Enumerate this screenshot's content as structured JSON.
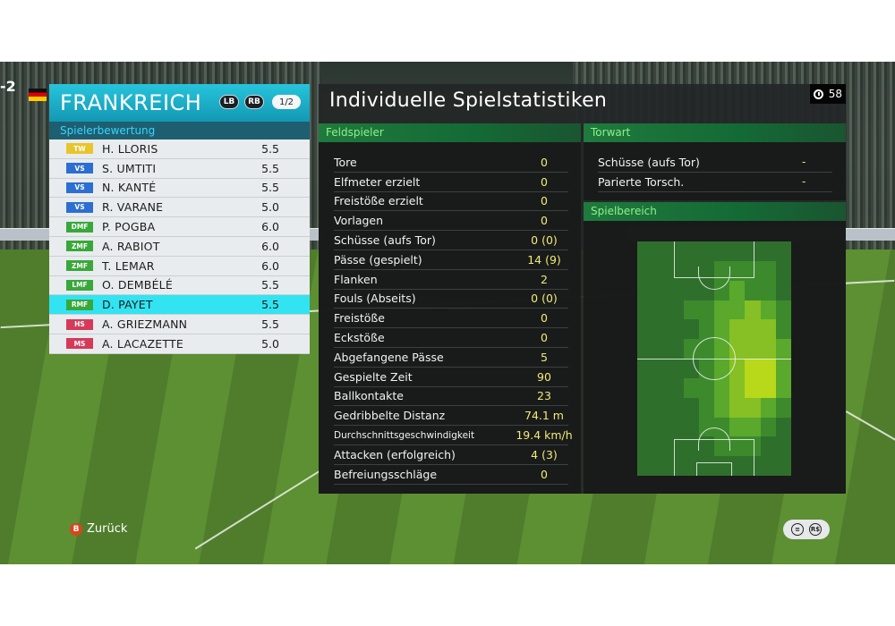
{
  "score": "-2",
  "team": {
    "name": "FRANKREICH",
    "lb": "LB",
    "rb": "RB",
    "page": "1/2",
    "rating_title": "Spielerbewertung"
  },
  "players": [
    {
      "pos": "TW",
      "name": "H. LLORIS",
      "rating": "5.5",
      "pos_color": "#e8c52b"
    },
    {
      "pos": "VS",
      "name": "S. UMTITI",
      "rating": "5.5",
      "pos_color": "#2c6fd1"
    },
    {
      "pos": "VS",
      "name": "N. KANTÉ",
      "rating": "5.5",
      "pos_color": "#2c6fd1"
    },
    {
      "pos": "VS",
      "name": "R. VARANE",
      "rating": "5.0",
      "pos_color": "#2c6fd1"
    },
    {
      "pos": "DMF",
      "name": "P. POGBA",
      "rating": "6.0",
      "pos_color": "#39a83b"
    },
    {
      "pos": "ZMF",
      "name": "A. RABIOT",
      "rating": "6.0",
      "pos_color": "#39a83b"
    },
    {
      "pos": "ZMF",
      "name": "T. LEMAR",
      "rating": "6.0",
      "pos_color": "#39a83b"
    },
    {
      "pos": "LMF",
      "name": "O. DEMBÉLÉ",
      "rating": "5.5",
      "pos_color": "#39a83b"
    },
    {
      "pos": "RMF",
      "name": "D. PAYET",
      "rating": "5.5",
      "pos_color": "#39a83b"
    },
    {
      "pos": "HS",
      "name": "A. GRIEZMANN",
      "rating": "5.5",
      "pos_color": "#d63a5b"
    },
    {
      "pos": "MS",
      "name": "A. LACAZETTE",
      "rating": "5.0",
      "pos_color": "#d63a5b"
    }
  ],
  "selected_player_index": 8,
  "stats": {
    "title": "Individuelle Spielstatistiken",
    "timer": "58",
    "field_head": "Feldspieler",
    "gk_head": "Torwart",
    "area_head": "Spielbereich",
    "field_rows": [
      {
        "label": "Tore",
        "value": "0"
      },
      {
        "label": "Elfmeter erzielt",
        "value": "0"
      },
      {
        "label": "Freistöße erzielt",
        "value": "0"
      },
      {
        "label": "Vorlagen",
        "value": "0"
      },
      {
        "label": "Schüsse (aufs Tor)",
        "value": "0 (0)"
      },
      {
        "label": "Pässe (gespielt)",
        "value": "14 (9)"
      },
      {
        "label": "Flanken",
        "value": "2"
      },
      {
        "label": "Fouls (Abseits)",
        "value": "0 (0)"
      },
      {
        "label": "Freistöße",
        "value": "0"
      },
      {
        "label": "Eckstöße",
        "value": "0"
      },
      {
        "label": "Abgefangene Pässe",
        "value": "5"
      },
      {
        "label": "Gespielte Zeit",
        "value": "90"
      },
      {
        "label": "Ballkontakte",
        "value": "23"
      },
      {
        "label": "Gedribbelte Distanz",
        "value": "74.1 m"
      },
      {
        "label": "Durchschnittsgeschwindigkeit",
        "value": "19.4 km/h"
      },
      {
        "label": "Attacken (erfolgreich)",
        "value": "4 (3)"
      },
      {
        "label": "Befreiungsschläge",
        "value": "0"
      }
    ],
    "gk_rows": [
      {
        "label": "Schüsse (aufs Tor)",
        "value": "-"
      },
      {
        "label": "Parierte Torsch.",
        "value": "-"
      }
    ]
  },
  "heatmap": {
    "cols": 10,
    "rows": 12,
    "levels": [
      [
        0,
        0,
        0,
        0,
        0,
        0,
        0,
        0,
        0,
        0
      ],
      [
        0,
        0,
        0,
        0,
        0,
        1,
        1,
        1,
        1,
        0
      ],
      [
        0,
        0,
        0,
        0,
        0,
        1,
        2,
        1,
        1,
        0
      ],
      [
        0,
        0,
        0,
        1,
        1,
        2,
        2,
        3,
        2,
        1
      ],
      [
        0,
        0,
        0,
        0,
        1,
        2,
        3,
        3,
        3,
        1
      ],
      [
        0,
        0,
        0,
        1,
        1,
        2,
        3,
        3,
        3,
        2
      ],
      [
        0,
        0,
        0,
        0,
        1,
        2,
        3,
        4,
        4,
        2
      ],
      [
        0,
        0,
        0,
        1,
        1,
        2,
        3,
        4,
        4,
        2
      ],
      [
        0,
        0,
        0,
        0,
        1,
        2,
        3,
        3,
        2,
        1
      ],
      [
        0,
        0,
        0,
        0,
        1,
        1,
        2,
        2,
        1,
        0
      ],
      [
        0,
        0,
        0,
        0,
        0,
        1,
        1,
        1,
        0,
        0
      ],
      [
        0,
        0,
        0,
        0,
        0,
        0,
        0,
        0,
        0,
        0
      ]
    ],
    "palette": [
      "#2f6f2c",
      "#3d8a2d",
      "#5aa82c",
      "#86c024",
      "#b8d81a"
    ]
  },
  "footer": {
    "back_key": "B",
    "back_label": "Zurück",
    "rs_label": "R$"
  }
}
